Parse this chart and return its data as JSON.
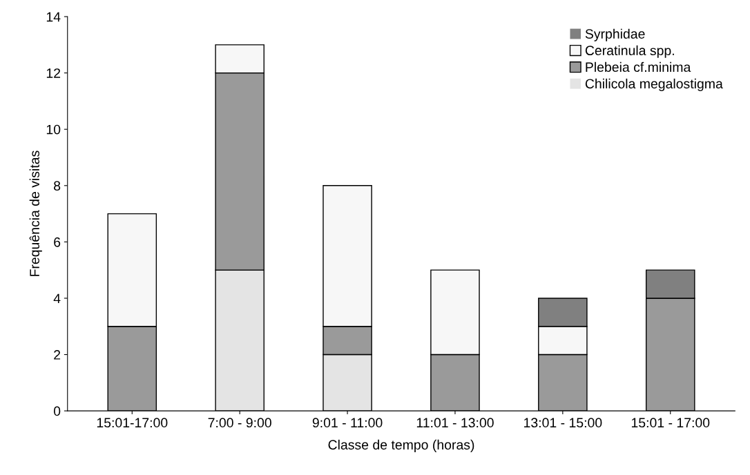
{
  "chart_data": {
    "type": "bar",
    "stacked": true,
    "xlabel": "Classe de tempo (horas)",
    "ylabel": "Frequência de visitas",
    "categories": [
      "15:01-17:00",
      "7:00 - 9:00",
      "9:01 - 11:00",
      "11:01 - 13:00",
      "13:01 - 15:00",
      "15:01 - 17:00"
    ],
    "series": [
      {
        "name": "Chilicola megalostigma",
        "color": "#e4e4e4",
        "values": [
          0,
          5,
          2,
          0,
          0,
          0
        ]
      },
      {
        "name": "Plebeia cf.minima",
        "color": "#9a9a9a",
        "values": [
          3,
          7,
          1,
          2,
          2,
          4
        ]
      },
      {
        "name": "Ceratinula spp.",
        "color": "#f7f7f7",
        "values": [
          4,
          1,
          5,
          3,
          1,
          0
        ]
      },
      {
        "name": "Syrphidae",
        "color": "#808080",
        "values": [
          0,
          0,
          0,
          0,
          1,
          1
        ]
      }
    ],
    "ylim": [
      0,
      14
    ],
    "yticks": [
      0,
      2,
      4,
      6,
      8,
      10,
      12,
      14
    ],
    "grid": false,
    "legend": "top right"
  }
}
